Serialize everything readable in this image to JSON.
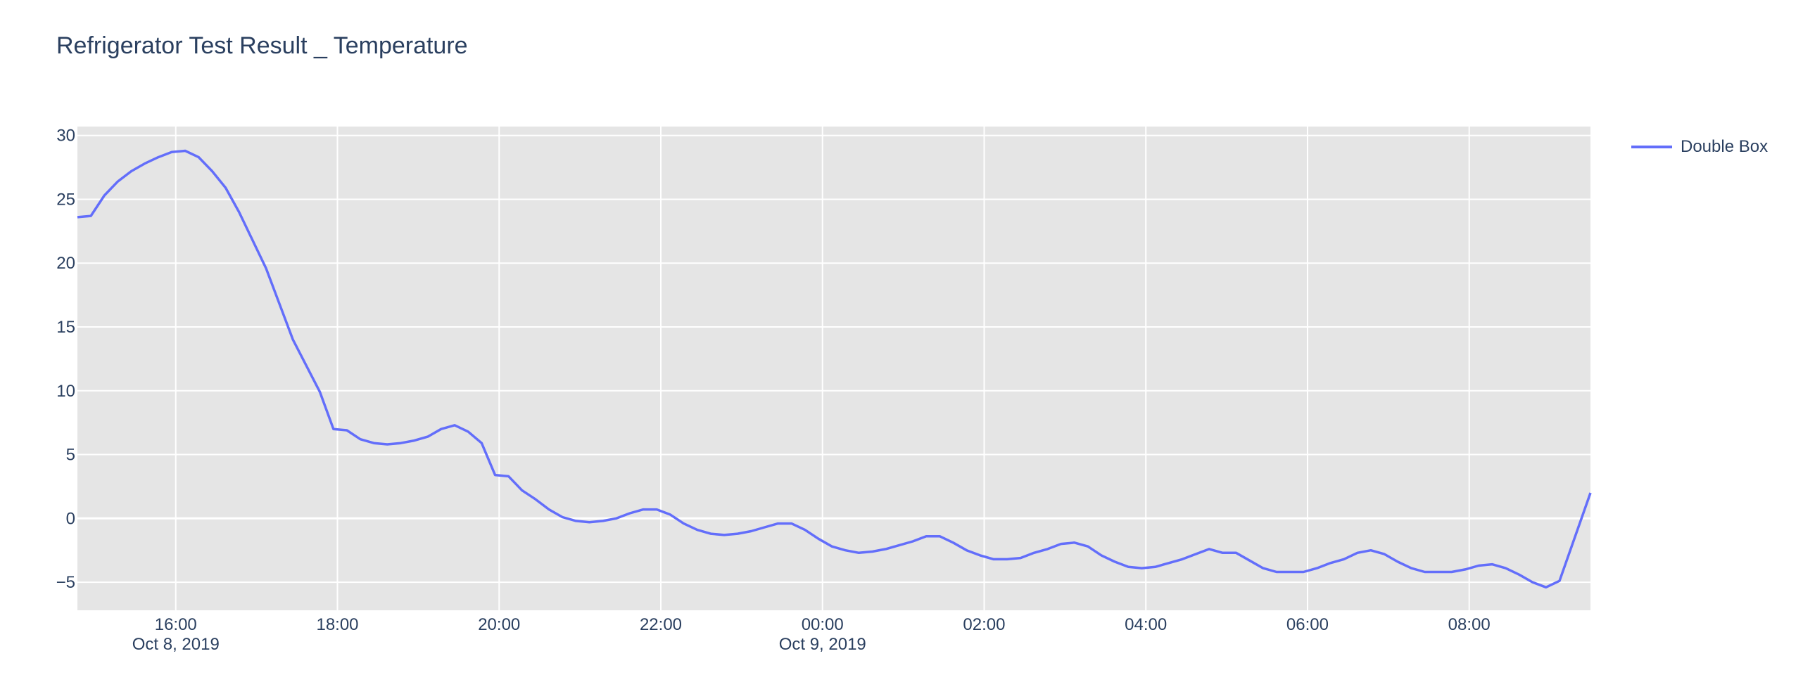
{
  "chart_data": {
    "type": "line",
    "title": "Refrigerator Test Result _ Temperature",
    "xlabel": "",
    "ylabel": "",
    "ylim": [
      -7.2,
      30.7
    ],
    "xlim": [
      "2019-10-08 14:47",
      "2019-10-09 09:30"
    ],
    "y_ticks": [
      30,
      25,
      20,
      15,
      10,
      5,
      0,
      -5
    ],
    "y_tick_labels": [
      "30",
      "25",
      "20",
      "15",
      "10",
      "5",
      "0",
      "−5"
    ],
    "x_ticks": [
      {
        "time": "2019-10-08 16:00",
        "label": "16:00",
        "date_label": "Oct 8, 2019"
      },
      {
        "time": "2019-10-08 18:00",
        "label": "18:00",
        "date_label": ""
      },
      {
        "time": "2019-10-08 20:00",
        "label": "20:00",
        "date_label": ""
      },
      {
        "time": "2019-10-08 22:00",
        "label": "22:00",
        "date_label": ""
      },
      {
        "time": "2019-10-09 00:00",
        "label": "00:00",
        "date_label": "Oct 9, 2019"
      },
      {
        "time": "2019-10-09 02:00",
        "label": "02:00",
        "date_label": ""
      },
      {
        "time": "2019-10-09 04:00",
        "label": "04:00",
        "date_label": ""
      },
      {
        "time": "2019-10-09 06:00",
        "label": "06:00",
        "date_label": ""
      },
      {
        "time": "2019-10-09 08:00",
        "label": "08:00",
        "date_label": ""
      }
    ],
    "grid": true,
    "legend_position": "top-right",
    "colors": {
      "line": "#636efa",
      "plot_bg": "#e5e5e5",
      "grid": "#ffffff",
      "text": "#2a3f5f"
    },
    "series": [
      {
        "name": "Double Box",
        "x": [
          "2019-10-08 14:47",
          "2019-10-08 14:57",
          "2019-10-08 15:07",
          "2019-10-08 15:17",
          "2019-10-08 15:27",
          "2019-10-08 15:37",
          "2019-10-08 15:47",
          "2019-10-08 15:57",
          "2019-10-08 16:07",
          "2019-10-08 16:17",
          "2019-10-08 16:27",
          "2019-10-08 16:37",
          "2019-10-08 16:47",
          "2019-10-08 17:07",
          "2019-10-08 17:27",
          "2019-10-08 17:47",
          "2019-10-08 17:57",
          "2019-10-08 18:07",
          "2019-10-08 18:17",
          "2019-10-08 18:27",
          "2019-10-08 18:37",
          "2019-10-08 18:47",
          "2019-10-08 18:57",
          "2019-10-08 19:07",
          "2019-10-08 19:17",
          "2019-10-08 19:27",
          "2019-10-08 19:37",
          "2019-10-08 19:47",
          "2019-10-08 19:57",
          "2019-10-08 20:07",
          "2019-10-08 20:17",
          "2019-10-08 20:27",
          "2019-10-08 20:37",
          "2019-10-08 20:47",
          "2019-10-08 20:57",
          "2019-10-08 21:07",
          "2019-10-08 21:17",
          "2019-10-08 21:27",
          "2019-10-08 21:37",
          "2019-10-08 21:47",
          "2019-10-08 21:57",
          "2019-10-08 22:07",
          "2019-10-08 22:17",
          "2019-10-08 22:27",
          "2019-10-08 22:37",
          "2019-10-08 22:47",
          "2019-10-08 22:57",
          "2019-10-08 23:07",
          "2019-10-08 23:17",
          "2019-10-08 23:27",
          "2019-10-08 23:37",
          "2019-10-08 23:47",
          "2019-10-08 23:57",
          "2019-10-09 00:07",
          "2019-10-09 00:17",
          "2019-10-09 00:27",
          "2019-10-09 00:37",
          "2019-10-09 00:47",
          "2019-10-09 00:57",
          "2019-10-09 01:07",
          "2019-10-09 01:17",
          "2019-10-09 01:27",
          "2019-10-09 01:37",
          "2019-10-09 01:47",
          "2019-10-09 01:57",
          "2019-10-09 02:07",
          "2019-10-09 02:17",
          "2019-10-09 02:27",
          "2019-10-09 02:37",
          "2019-10-09 02:47",
          "2019-10-09 02:57",
          "2019-10-09 03:07",
          "2019-10-09 03:17",
          "2019-10-09 03:27",
          "2019-10-09 03:37",
          "2019-10-09 03:47",
          "2019-10-09 03:57",
          "2019-10-09 04:07",
          "2019-10-09 04:17",
          "2019-10-09 04:27",
          "2019-10-09 04:37",
          "2019-10-09 04:47",
          "2019-10-09 04:57",
          "2019-10-09 05:07",
          "2019-10-09 05:17",
          "2019-10-09 05:27",
          "2019-10-09 05:37",
          "2019-10-09 05:47",
          "2019-10-09 05:57",
          "2019-10-09 06:07",
          "2019-10-09 06:17",
          "2019-10-09 06:27",
          "2019-10-09 06:37",
          "2019-10-09 06:47",
          "2019-10-09 06:57",
          "2019-10-09 07:07",
          "2019-10-09 07:17",
          "2019-10-09 07:27",
          "2019-10-09 07:37",
          "2019-10-09 07:47",
          "2019-10-09 07:57",
          "2019-10-09 08:07",
          "2019-10-09 08:17",
          "2019-10-09 08:27",
          "2019-10-09 08:37",
          "2019-10-09 08:47",
          "2019-10-09 08:57",
          "2019-10-09 09:07",
          "2019-10-09 09:30"
        ],
        "y": [
          23.6,
          23.7,
          25.3,
          26.4,
          27.2,
          27.8,
          28.3,
          28.7,
          28.8,
          28.3,
          27.2,
          25.9,
          24.0,
          19.6,
          14.0,
          9.9,
          7.0,
          6.9,
          6.2,
          5.9,
          5.8,
          5.9,
          6.1,
          6.4,
          7.0,
          7.3,
          6.8,
          5.9,
          3.4,
          3.3,
          2.2,
          1.5,
          0.7,
          0.1,
          -0.2,
          -0.3,
          -0.2,
          0.0,
          0.4,
          0.7,
          0.7,
          0.3,
          -0.4,
          -0.9,
          -1.2,
          -1.3,
          -1.2,
          -1.0,
          -0.7,
          -0.4,
          -0.4,
          -0.9,
          -1.6,
          -2.2,
          -2.5,
          -2.7,
          -2.6,
          -2.4,
          -2.1,
          -1.8,
          -1.4,
          -1.4,
          -1.9,
          -2.5,
          -2.9,
          -3.2,
          -3.2,
          -3.1,
          -2.7,
          -2.4,
          -2.0,
          -1.9,
          -2.2,
          -2.9,
          -3.4,
          -3.8,
          -3.9,
          -3.8,
          -3.5,
          -3.2,
          -2.8,
          -2.4,
          -2.7,
          -2.7,
          -3.3,
          -3.9,
          -4.2,
          -4.2,
          -4.2,
          -3.9,
          -3.5,
          -3.2,
          -2.7,
          -2.5,
          -2.8,
          -3.4,
          -3.9,
          -4.2,
          -4.2,
          -4.2,
          -4.0,
          -3.7,
          -3.6,
          -3.9,
          -4.4,
          -5.0,
          -5.4,
          -4.9,
          2.0
        ]
      }
    ]
  }
}
